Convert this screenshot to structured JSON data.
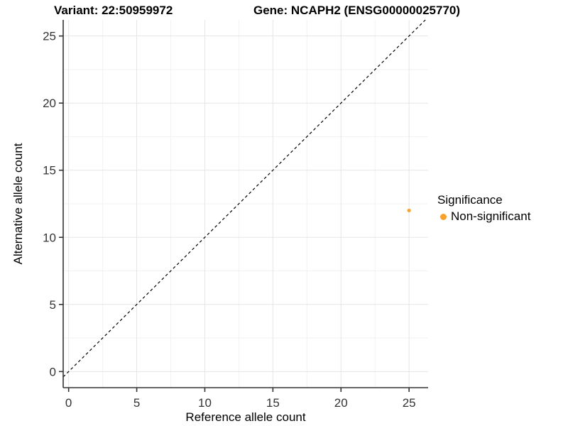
{
  "figure": {
    "title_left": "Variant: 22:50959972",
    "title_right": "Gene: NCAPH2 (ENSG00000025770)"
  },
  "chart_data": {
    "type": "scatter",
    "title": "Variant: 22:50959972    Gene: NCAPH2 (ENSG00000025770)",
    "xlabel": "Reference allele count",
    "ylabel": "Alternative allele count",
    "xlim": [
      -0.4,
      26.4
    ],
    "ylim": [
      -1.2,
      26.2
    ],
    "x_ticks": [
      0,
      5,
      10,
      15,
      20,
      25
    ],
    "y_ticks": [
      0,
      5,
      10,
      15,
      20,
      25
    ],
    "x_minor_ticks": [
      2.5,
      7.5,
      12.5,
      17.5,
      22.5
    ],
    "y_minor_ticks": [
      2.5,
      7.5,
      12.5,
      17.5,
      22.5
    ],
    "grid": "major and minor gridlines, white background",
    "reference_line": {
      "kind": "identity y=x",
      "style": "dashed",
      "color": "#000000"
    },
    "series": [
      {
        "name": "Non-significant",
        "color": "#F9A12B",
        "points": [
          {
            "x": 25,
            "y": 12
          }
        ]
      }
    ],
    "legend": {
      "title": "Significance",
      "position": "right",
      "items": [
        {
          "label": "Non-significant",
          "color": "#F9A12B"
        }
      ]
    },
    "colors": {
      "axis": "#333333",
      "grid_major": "#E5E5E5",
      "grid_minor": "#F2F2F2",
      "point": "#F9A12B"
    }
  }
}
